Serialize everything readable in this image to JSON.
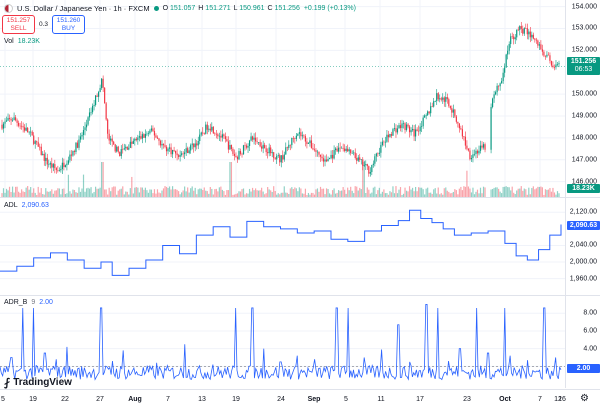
{
  "header": {
    "symbol": "U.S. Dollar / Japanese Yen · 1h · FXCM",
    "ohlc": [
      {
        "k": "O",
        "v": "151.057"
      },
      {
        "k": "H",
        "v": "151.271"
      },
      {
        "k": "L",
        "v": "150.961"
      },
      {
        "k": "C",
        "v": "151.256"
      }
    ],
    "change": "+0.199 (+0.13%)",
    "sell_price": "151.257",
    "sell_label": "SELL",
    "spread": "0.3",
    "buy_price": "151.260",
    "buy_label": "BUY",
    "vol_label": "Vol",
    "vol_value": "18.23K"
  },
  "price_axis": {
    "ticks": [
      "154.000",
      "153.000",
      "152.000",
      "150.000",
      "149.000",
      "148.000",
      "147.000",
      "146.000"
    ],
    "last_price": "151.256",
    "countdown": "06:53",
    "volume_tag": "18.23K"
  },
  "adl": {
    "label": "ADL",
    "value": "2,090.63",
    "ticks": [
      "2,120.00",
      "2,040.00",
      "2,000.00",
      "1,960.00"
    ],
    "tag": "2,090.63"
  },
  "adr": {
    "label": "ADR_B",
    "param": "9",
    "value": "2.00",
    "ticks": [
      "8.00",
      "6.00",
      "4.00"
    ],
    "tag": "2.00"
  },
  "time_axis": [
    "5",
    "19",
    "22",
    "27",
    "Aug",
    "7",
    "13",
    "19",
    "24",
    "Sep",
    "5",
    "11",
    "17",
    "23",
    "Oct",
    "7",
    "12",
    "16"
  ],
  "logo": "TradingView",
  "colors": {
    "up": "#089981",
    "down": "#f23645",
    "indicator": "#2962ff",
    "sell": "#f23645",
    "buy": "#2962ff"
  },
  "chart_data": [
    {
      "type": "candlestick",
      "title": "U.S. Dollar / Japanese Yen · 1h · FXCM",
      "ylim": [
        145.3,
        154.3
      ],
      "x_ticks": [
        "5",
        "19",
        "22",
        "27",
        "Aug",
        "7",
        "13",
        "19",
        "24",
        "Sep",
        "5",
        "11",
        "17",
        "23",
        "Oct",
        "7",
        "12",
        "16"
      ],
      "y_ticks": [
        154,
        153,
        152,
        150,
        149,
        148,
        147,
        146
      ],
      "anchors": [
        [
          0,
          148.6
        ],
        [
          0.02,
          148.9
        ],
        [
          0.05,
          148.2
        ],
        [
          0.08,
          146.9
        ],
        [
          0.1,
          146.5
        ],
        [
          0.12,
          147.1
        ],
        [
          0.14,
          147.9
        ],
        [
          0.16,
          149.2
        ],
        [
          0.18,
          150.7
        ],
        [
          0.19,
          148.0
        ],
        [
          0.21,
          147.3
        ],
        [
          0.24,
          147.9
        ],
        [
          0.27,
          148.3
        ],
        [
          0.29,
          147.6
        ],
        [
          0.32,
          147.2
        ],
        [
          0.35,
          147.8
        ],
        [
          0.37,
          148.6
        ],
        [
          0.4,
          147.9
        ],
        [
          0.42,
          147.1
        ],
        [
          0.45,
          148.0
        ],
        [
          0.48,
          147.4
        ],
        [
          0.5,
          147.0
        ],
        [
          0.53,
          148.3
        ],
        [
          0.55,
          147.8
        ],
        [
          0.58,
          146.9
        ],
        [
          0.61,
          147.6
        ],
        [
          0.63,
          147.2
        ],
        [
          0.66,
          146.5
        ],
        [
          0.68,
          147.6
        ],
        [
          0.7,
          148.3
        ],
        [
          0.72,
          148.6
        ],
        [
          0.74,
          148.2
        ],
        [
          0.76,
          148.9
        ],
        [
          0.78,
          149.9
        ],
        [
          0.8,
          149.7
        ],
        [
          0.82,
          148.6
        ],
        [
          0.84,
          147.2
        ],
        [
          0.86,
          147.5
        ],
        [
          0.87,
          147.6
        ],
        [
          0.88,
          149.7
        ],
        [
          0.9,
          150.9
        ],
        [
          0.91,
          152.4
        ],
        [
          0.93,
          153.0
        ],
        [
          0.95,
          152.7
        ],
        [
          0.97,
          152.0
        ],
        [
          0.99,
          151.3
        ],
        [
          1.0,
          151.26
        ]
      ],
      "volume_ylim": [
        0,
        20
      ],
      "volume_last": 18.23
    },
    {
      "type": "line",
      "title": "ADL",
      "ylim": [
        1935,
        2140
      ],
      "y_ticks": [
        2120,
        2040,
        2000,
        1960
      ],
      "last_value": 2090.63,
      "x": [
        0,
        0.03,
        0.06,
        0.09,
        0.12,
        0.15,
        0.18,
        0.2,
        0.23,
        0.26,
        0.29,
        0.32,
        0.35,
        0.38,
        0.41,
        0.44,
        0.47,
        0.5,
        0.53,
        0.56,
        0.59,
        0.62,
        0.65,
        0.68,
        0.71,
        0.73,
        0.75,
        0.77,
        0.79,
        0.81,
        0.84,
        0.87,
        0.9,
        0.92,
        0.94,
        0.96,
        0.98,
        1.0
      ],
      "values": [
        1978,
        1990,
        2010,
        2022,
        2005,
        1985,
        2000,
        1968,
        1985,
        2005,
        2040,
        2020,
        2065,
        2085,
        2060,
        2098,
        2085,
        2080,
        2070,
        2075,
        2055,
        2050,
        2075,
        2088,
        2100,
        2125,
        2105,
        2095,
        2080,
        2065,
        2070,
        2075,
        2045,
        2015,
        2005,
        2030,
        2065,
        2090.63
      ]
    },
    {
      "type": "line",
      "title": "ADR_B",
      "ylim": [
        0,
        9.5
      ],
      "y_ticks": [
        8,
        6,
        4,
        2
      ],
      "last_value": 2.0,
      "spikes": [
        [
          0.02,
          3.0
        ],
        [
          0.04,
          8.6
        ],
        [
          0.06,
          8.6
        ],
        [
          0.08,
          3.5
        ],
        [
          0.1,
          2.8
        ],
        [
          0.12,
          4.2
        ],
        [
          0.18,
          8.6
        ],
        [
          0.2,
          2.6
        ],
        [
          0.22,
          3.8
        ],
        [
          0.28,
          2.4
        ],
        [
          0.33,
          4.5
        ],
        [
          0.38,
          2.2
        ],
        [
          0.42,
          8.6
        ],
        [
          0.45,
          8.6
        ],
        [
          0.47,
          4.0
        ],
        [
          0.5,
          2.5
        ],
        [
          0.53,
          3.2
        ],
        [
          0.56,
          2.8
        ],
        [
          0.6,
          8.6
        ],
        [
          0.62,
          8.6
        ],
        [
          0.65,
          3.0
        ],
        [
          0.68,
          3.9
        ],
        [
          0.71,
          6.7
        ],
        [
          0.73,
          2.5
        ],
        [
          0.76,
          9.0
        ],
        [
          0.78,
          8.6
        ],
        [
          0.8,
          2.6
        ],
        [
          0.82,
          4.0
        ],
        [
          0.85,
          8.6
        ],
        [
          0.87,
          3.5
        ],
        [
          0.9,
          8.6
        ],
        [
          0.91,
          3.2
        ],
        [
          0.94,
          2.7
        ],
        [
          0.97,
          8.6
        ],
        [
          0.99,
          3.0
        ]
      ]
    }
  ]
}
